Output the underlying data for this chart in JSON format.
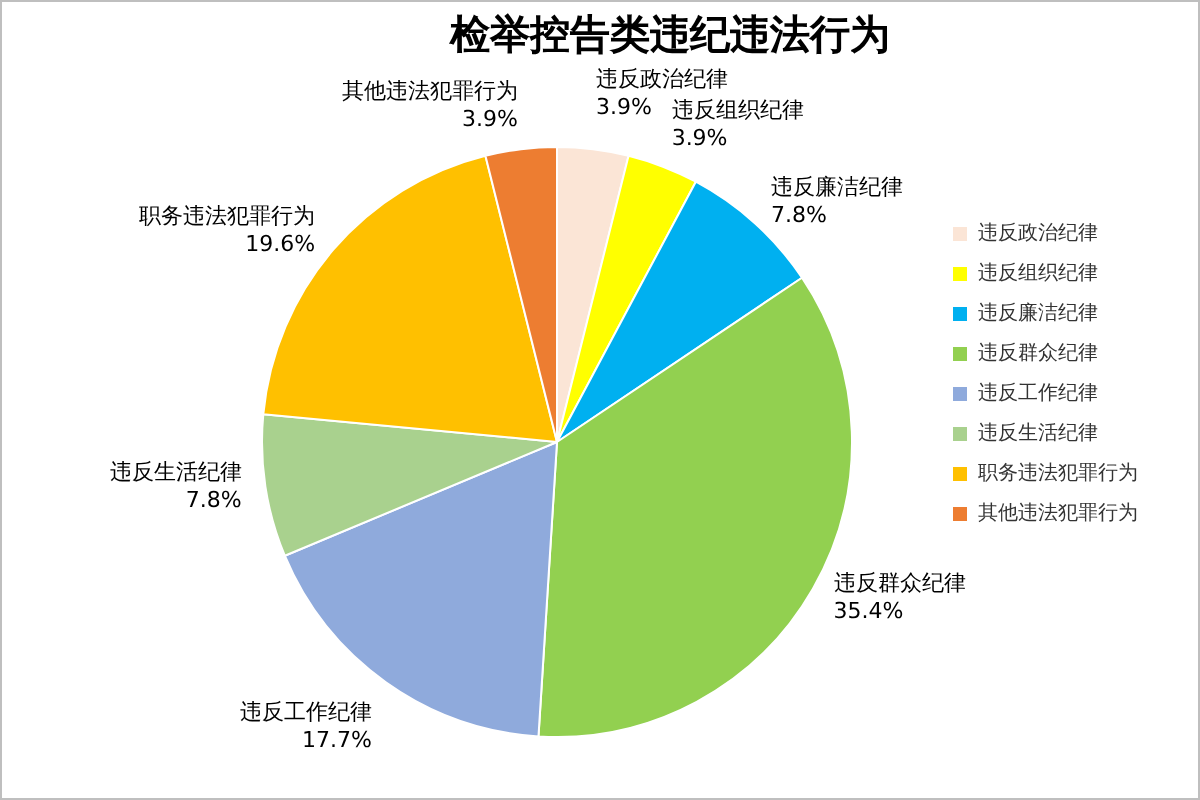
{
  "chart_data": {
    "type": "pie",
    "title": "检举控告类违纪违法行为",
    "categories": [
      "违反政治纪律",
      "违反组织纪律",
      "违反廉洁纪律",
      "违反群众纪律",
      "违反工作纪律",
      "违反生活纪律",
      "职务违法犯罪行为",
      "其他违法犯罪行为"
    ],
    "values": [
      3.9,
      3.9,
      7.8,
      35.4,
      17.7,
      7.8,
      19.6,
      3.9
    ],
    "value_labels": [
      "3.9%",
      "3.9%",
      "7.8%",
      "35.4%",
      "17.7%",
      "7.8%",
      "19.6%",
      "3.9%"
    ],
    "colors": [
      "#fbe5d6",
      "#ffff00",
      "#00b0f0",
      "#92d050",
      "#8faadc",
      "#a9d18e",
      "#ffc000",
      "#ed7d31"
    ],
    "legend": "right"
  }
}
